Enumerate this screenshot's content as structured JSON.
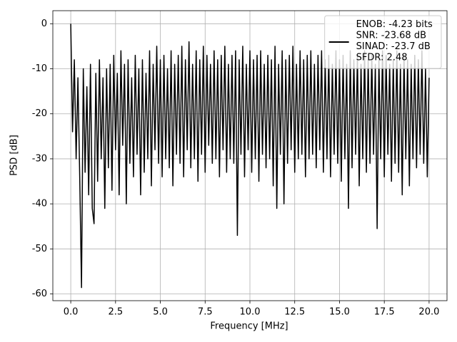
{
  "chart_data": {
    "type": "line",
    "xlabel": "Frequency [MHz]",
    "ylabel": "PSD [dB]",
    "xlim": [
      -1.0,
      21.0
    ],
    "ylim": [
      -61.5,
      2.9
    ],
    "xticks": [
      {
        "value": 0,
        "label": "0.0"
      },
      2.5,
      {
        "value": 5,
        "label": "5.0"
      },
      7.5,
      {
        "value": 10,
        "label": "10.0"
      },
      12.5,
      {
        "value": 15,
        "label": "15.0"
      },
      17.5,
      {
        "value": 20,
        "label": "20.0"
      }
    ],
    "yticks": [
      0,
      -10,
      -20,
      -30,
      -40,
      -50,
      -60
    ],
    "grid": true,
    "legend": "upper right",
    "x": [
      0,
      0.1,
      0.2,
      0.3,
      0.4,
      0.5,
      0.6,
      0.7,
      0.8,
      0.9,
      1,
      1.1,
      1.2,
      1.3,
      1.4,
      1.5,
      1.6,
      1.7,
      1.8,
      1.9,
      2,
      2.1,
      2.2,
      2.3,
      2.4,
      2.5,
      2.6,
      2.7,
      2.8,
      2.9,
      3,
      3.1,
      3.2,
      3.3,
      3.4,
      3.5,
      3.6,
      3.7,
      3.8,
      3.9,
      4,
      4.1,
      4.2,
      4.3,
      4.4,
      4.5,
      4.6,
      4.7,
      4.8,
      4.9,
      5,
      5.1,
      5.2,
      5.3,
      5.4,
      5.5,
      5.6,
      5.7,
      5.8,
      5.9,
      6,
      6.1,
      6.2,
      6.3,
      6.4,
      6.5,
      6.6,
      6.7,
      6.8,
      6.9,
      7,
      7.1,
      7.2,
      7.3,
      7.4,
      7.5,
      7.6,
      7.7,
      7.8,
      7.9,
      8,
      8.1,
      8.2,
      8.3,
      8.4,
      8.5,
      8.6,
      8.7,
      8.8,
      8.9,
      9,
      9.1,
      9.2,
      9.3,
      9.4,
      9.5,
      9.6,
      9.7,
      9.8,
      9.9,
      10,
      10.1,
      10.2,
      10.3,
      10.4,
      10.5,
      10.6,
      10.7,
      10.8,
      10.9,
      11,
      11.1,
      11.2,
      11.3,
      11.4,
      11.5,
      11.6,
      11.7,
      11.8,
      11.9,
      12,
      12.1,
      12.2,
      12.3,
      12.4,
      12.5,
      12.6,
      12.7,
      12.8,
      12.9,
      13,
      13.1,
      13.2,
      13.3,
      13.4,
      13.5,
      13.6,
      13.7,
      13.8,
      13.9,
      14,
      14.1,
      14.2,
      14.3,
      14.4,
      14.5,
      14.6,
      14.7,
      14.8,
      14.9,
      15,
      15.1,
      15.2,
      15.3,
      15.4,
      15.5,
      15.6,
      15.7,
      15.8,
      15.9,
      16,
      16.1,
      16.2,
      16.3,
      16.4,
      16.5,
      16.6,
      16.7,
      16.8,
      16.9,
      17,
      17.1,
      17.2,
      17.3,
      17.4,
      17.5,
      17.6,
      17.7,
      17.8,
      17.9,
      18,
      18.1,
      18.2,
      18.3,
      18.4,
      18.5,
      18.6,
      18.7,
      18.8,
      18.9,
      19,
      19.1,
      19.2,
      19.3,
      19.4,
      19.5,
      19.6,
      19.7,
      19.8,
      19.9,
      20
    ],
    "series": [
      {
        "name": "ENOB: -4.23 bits\nSNR: -23.68 dB\nSINAD: -23.7 dB\nSFDR: 2.48",
        "color": "#000000",
        "values": [
          0,
          -24,
          -8,
          -30,
          -12,
          -34,
          -58.6,
          -10,
          -33,
          -14,
          -38,
          -9,
          -41,
          -44.4,
          -11,
          -35,
          -8,
          -30,
          -12,
          -41,
          -10,
          -32,
          -9,
          -37,
          -7,
          -28,
          -11,
          -38,
          -6,
          -27,
          -9,
          -40,
          -8,
          -31,
          -12,
          -34,
          -7,
          -29,
          -10,
          -38,
          -8,
          -33,
          -11,
          -30,
          -6,
          -36,
          -9,
          -28,
          -5,
          -31,
          -8,
          -34,
          -7,
          -30,
          -10,
          -32,
          -6,
          -36,
          -9,
          -29,
          -7,
          -31,
          -5,
          -34,
          -8,
          -28,
          -4,
          -32,
          -9,
          -30,
          -6,
          -35,
          -8,
          -29,
          -5,
          -33,
          -7,
          -27,
          -9,
          -31,
          -6,
          -30,
          -8,
          -34,
          -7,
          -28,
          -5,
          -33,
          -9,
          -30,
          -7,
          -31,
          -6,
          -47,
          -8,
          -29,
          -5,
          -34,
          -9,
          -28,
          -6,
          -33,
          -8,
          -30,
          -7,
          -35,
          -6,
          -29,
          -9,
          -32,
          -7,
          -30,
          -8,
          -36,
          -5,
          -41,
          -9,
          -29,
          -6,
          -40,
          -8,
          -31,
          -7,
          -28,
          -5,
          -33,
          -9,
          -30,
          -6,
          -29,
          -8,
          -34,
          -7,
          -30,
          -6,
          -29,
          -9,
          -32,
          -7,
          -28,
          -6,
          -33,
          -8,
          -30,
          -7,
          -34,
          -9,
          -29,
          -6,
          -31,
          -8,
          -35,
          -7,
          -30,
          -9,
          -41,
          -6,
          -32,
          -8,
          -29,
          -7,
          -36,
          -9,
          -30,
          -6,
          -33,
          -8,
          -31,
          -7,
          -29,
          -9,
          -45.5,
          -8,
          -30,
          -6,
          -34,
          -7,
          -29,
          -9,
          -35,
          -8,
          -31,
          -6,
          -33,
          -9,
          -38,
          -7,
          -30,
          -8,
          -36,
          -9,
          -30,
          -7,
          -32,
          -8,
          -29,
          -6,
          -31,
          -10,
          -34,
          -12
        ]
      }
    ]
  }
}
